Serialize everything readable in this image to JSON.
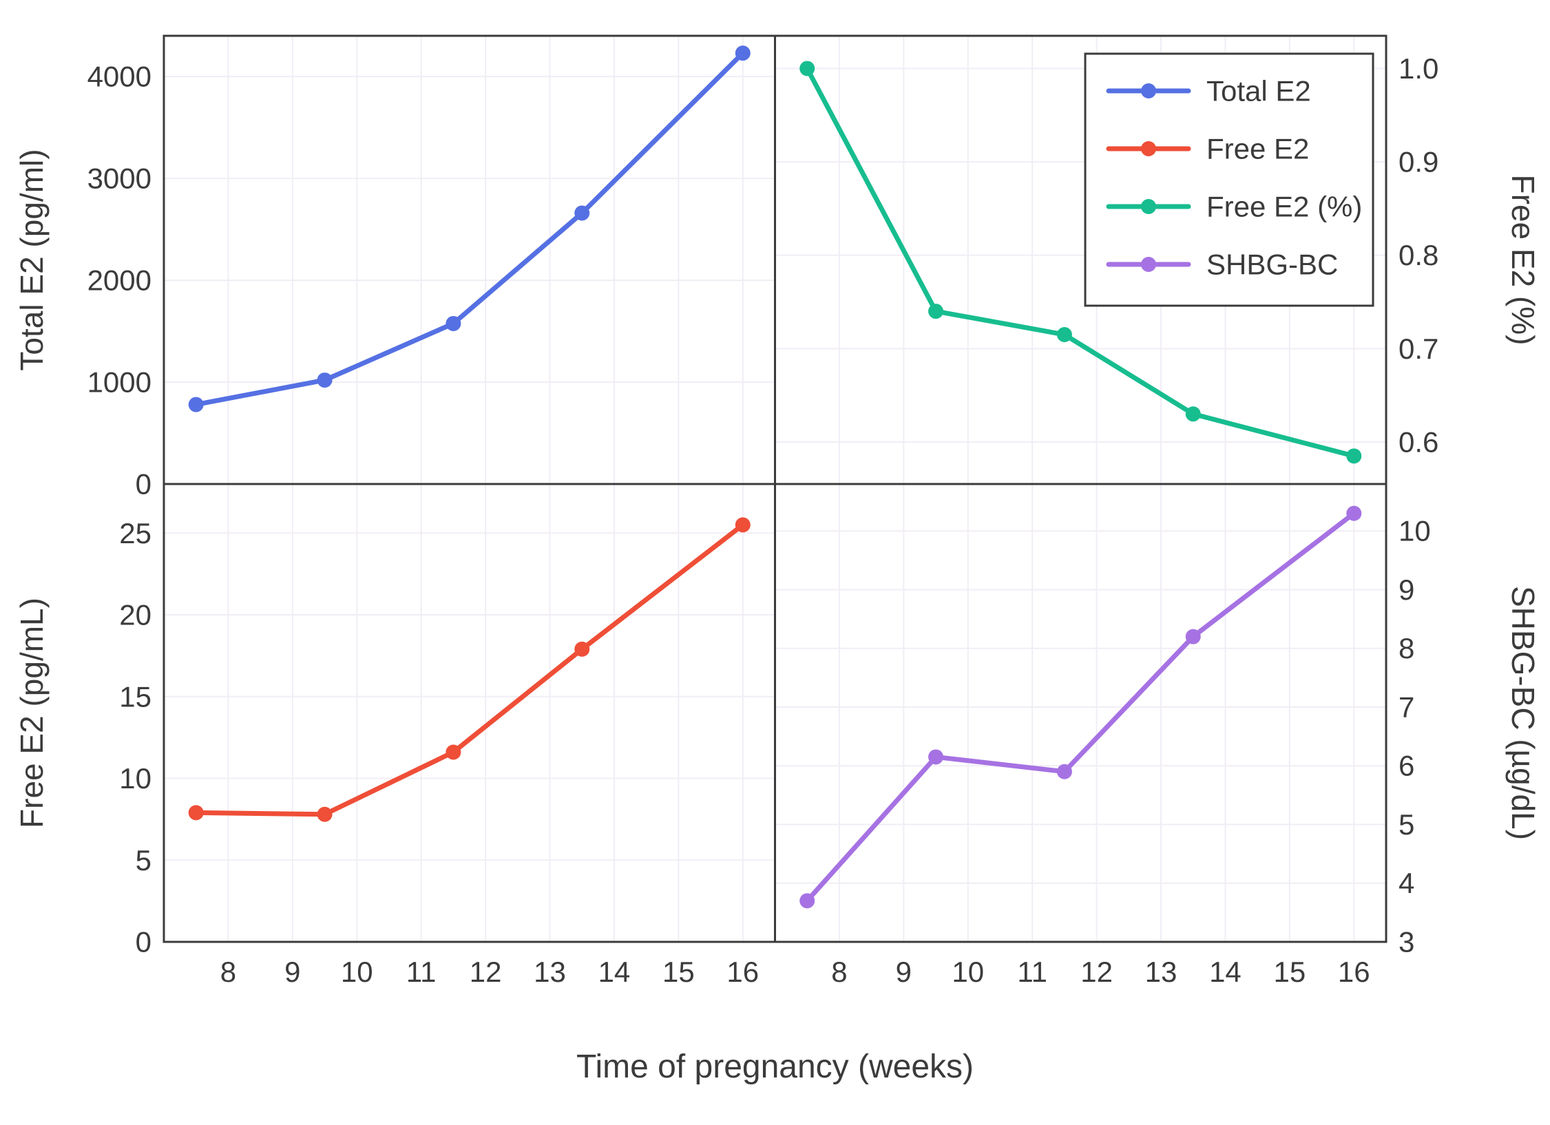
{
  "figure": {
    "background": "#ffffff",
    "border_color": "#3b3b3b",
    "grid_color": "#f1edf5",
    "text_color": "#3b3b3b"
  },
  "chart_data": {
    "type": "line",
    "title": "",
    "xlabel": "Time of pregnancy (weeks)",
    "xlim": [
      7,
      16.5
    ],
    "x_ticks": [
      8,
      9,
      10,
      11,
      12,
      13,
      14,
      15,
      16
    ],
    "x": [
      7.5,
      9.5,
      11.5,
      13.5,
      16
    ],
    "grid": true,
    "layout": "2x2-shared-x",
    "panels": [
      {
        "id": "total-e2",
        "name": "Total E2",
        "ylabel": "Total E2 (pg/ml)",
        "axis_side": "left",
        "color": "#5570e3",
        "values": [
          780,
          1020,
          1575,
          2660,
          4230
        ],
        "ylim": [
          0,
          4400
        ],
        "y_ticks": [
          {
            "v": 0,
            "label": "0"
          },
          {
            "v": 1000,
            "label": "1000"
          },
          {
            "v": 2000,
            "label": "2000"
          },
          {
            "v": 3000,
            "label": "3000"
          },
          {
            "v": 4000,
            "label": "4000"
          }
        ]
      },
      {
        "id": "free-e2-pct",
        "name": "Free E2 (%)",
        "ylabel": "Free E2 (%)",
        "axis_side": "right",
        "color": "#17bd8f",
        "values": [
          1.0,
          0.74,
          0.715,
          0.63,
          0.585
        ],
        "ylim": [
          0.555,
          1.035
        ],
        "y_ticks": [
          {
            "v": 0.6,
            "label": "0.6"
          },
          {
            "v": 0.7,
            "label": "0.7"
          },
          {
            "v": 0.8,
            "label": "0.8"
          },
          {
            "v": 0.9,
            "label": "0.9"
          },
          {
            "v": 1.0,
            "label": "1.0"
          }
        ]
      },
      {
        "id": "free-e2",
        "name": "Free E2",
        "ylabel": "Free E2 (pg/mL)",
        "axis_side": "left",
        "color": "#ef4e37",
        "values": [
          7.9,
          7.8,
          11.6,
          17.9,
          25.5
        ],
        "ylim": [
          0,
          28
        ],
        "y_ticks": [
          {
            "v": 0,
            "label": "0"
          },
          {
            "v": 5,
            "label": "5"
          },
          {
            "v": 10,
            "label": "10"
          },
          {
            "v": 15,
            "label": "15"
          },
          {
            "v": 20,
            "label": "20"
          },
          {
            "v": 25,
            "label": "25"
          }
        ]
      },
      {
        "id": "shbg-bc",
        "name": "SHBG-BC",
        "ylabel": "SHBG-BC (µg/dL)",
        "axis_side": "right",
        "color": "#a672e3",
        "values": [
          3.7,
          6.15,
          5.9,
          8.2,
          10.3
        ],
        "ylim": [
          3,
          10.8
        ],
        "y_ticks": [
          {
            "v": 3,
            "label": "3"
          },
          {
            "v": 4,
            "label": "4"
          },
          {
            "v": 5,
            "label": "5"
          },
          {
            "v": 6,
            "label": "6"
          },
          {
            "v": 7,
            "label": "7"
          },
          {
            "v": 8,
            "label": "8"
          },
          {
            "v": 9,
            "label": "9"
          },
          {
            "v": 10,
            "label": "10"
          }
        ]
      }
    ],
    "legend": {
      "position": "top-right-panel",
      "entries": [
        {
          "label": "Total E2",
          "color": "#5570e3"
        },
        {
          "label": "Free E2",
          "color": "#ef4e37"
        },
        {
          "label": "Free E2 (%)",
          "color": "#17bd8f"
        },
        {
          "label": "SHBG-BC",
          "color": "#a672e3"
        }
      ]
    }
  }
}
